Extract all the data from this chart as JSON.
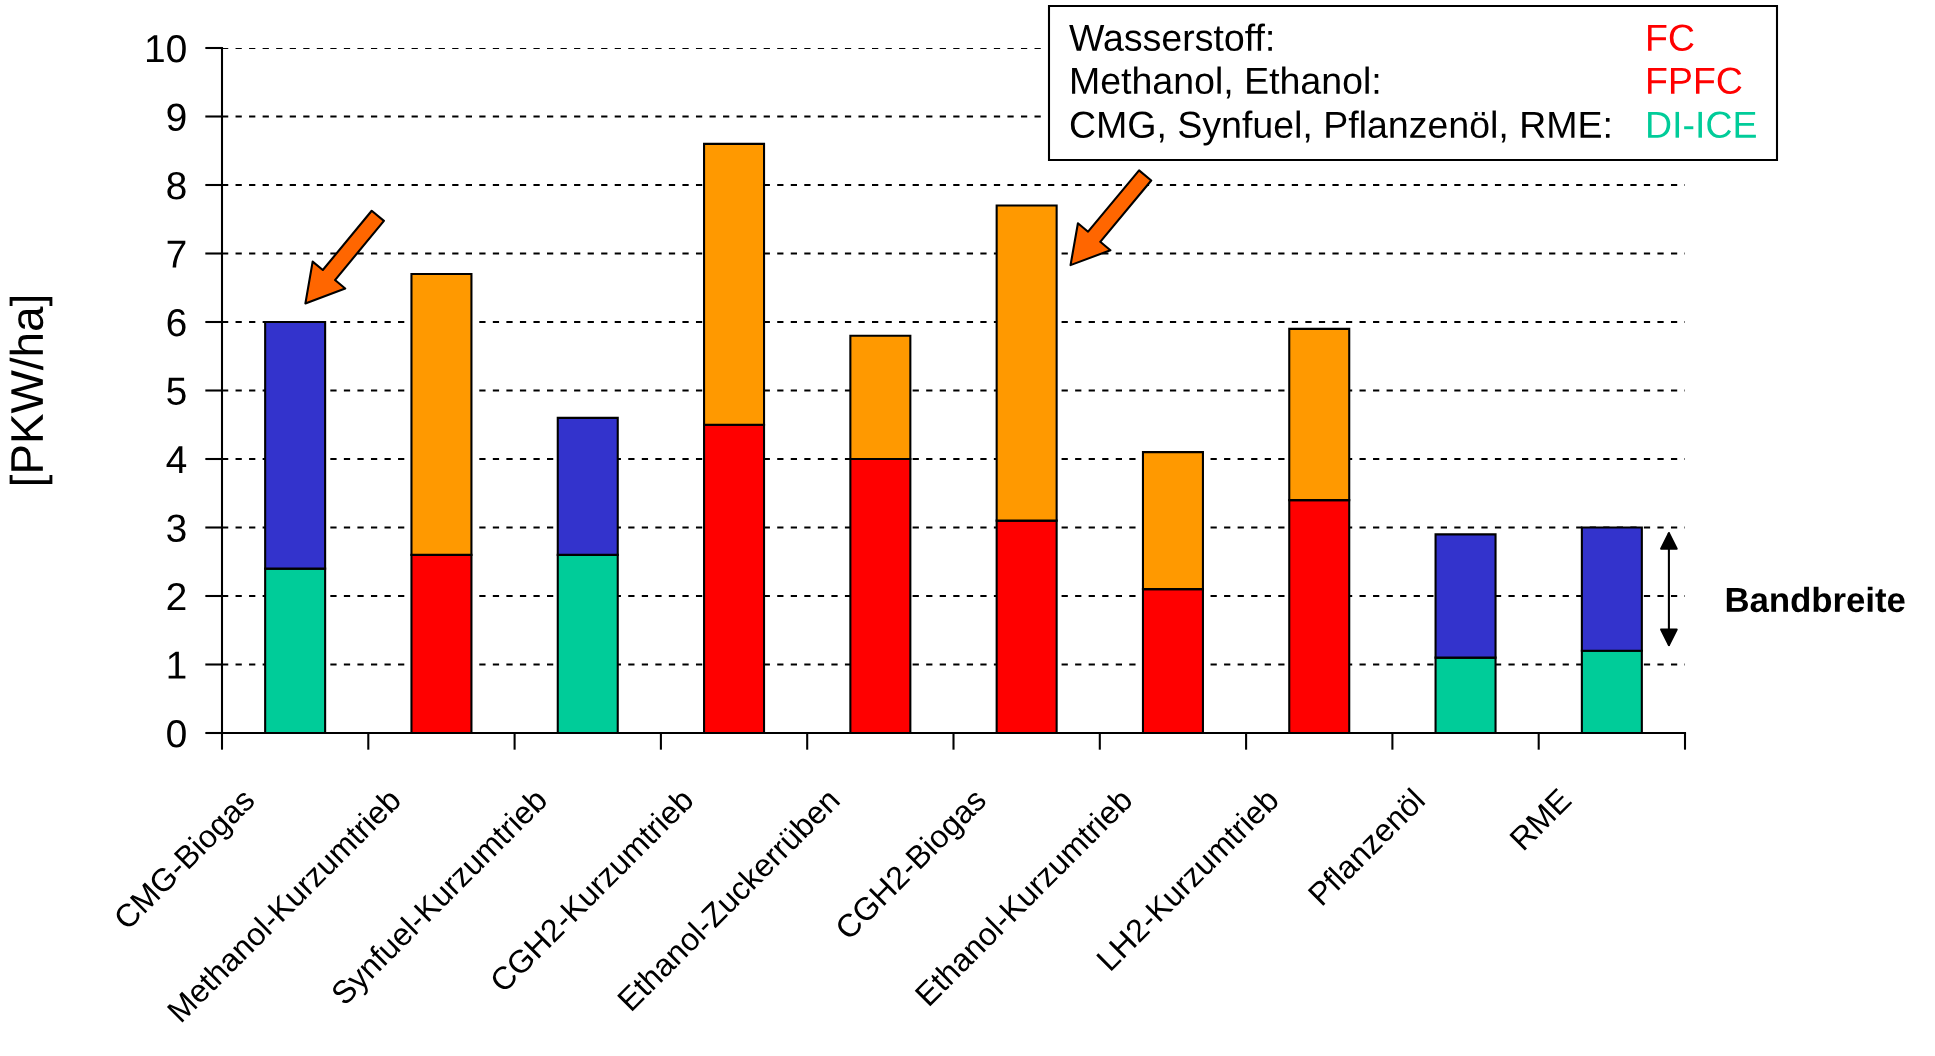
{
  "chart_data": {
    "type": "bar",
    "stacked": true,
    "ylabel": "[PKW/ha]",
    "categories": [
      "CMG-Biogas",
      "Methanol-Kurzumtrieb",
      "Synfuel-Kurzumtrieb",
      "CGH2-Kurzumtrieb",
      "Ethanol-Zuckerrüben",
      "CGH2-Biogas",
      "Ethanol-Kurzumtrieb",
      "LH2-Kurzumtrieb",
      "Pflanzenöl",
      "RME"
    ],
    "series": [
      {
        "colors": [
          "#00cc99",
          "#ff0000",
          "#00cc99",
          "#ff0000",
          "#ff0000",
          "#ff0000",
          "#ff0000",
          "#ff0000",
          "#00cc99",
          "#00cc99"
        ],
        "values": [
          2.4,
          2.6,
          2.6,
          4.5,
          4.0,
          3.1,
          2.1,
          3.4,
          1.1,
          1.2
        ]
      },
      {
        "colors": [
          "#3333cc",
          "#ff9900",
          "#3333cc",
          "#ff9900",
          "#ff9900",
          "#ff9900",
          "#ff9900",
          "#ff9900",
          "#3333cc",
          "#3333cc"
        ],
        "values": [
          3.6,
          4.1,
          2.0,
          4.1,
          1.8,
          4.6,
          2.0,
          2.5,
          1.8,
          1.8
        ]
      }
    ],
    "ylim": [
      0,
      10
    ],
    "yticks": [
      0,
      1,
      2,
      3,
      4,
      5,
      6,
      7,
      8,
      9,
      10
    ],
    "grid": "y",
    "annotations": [
      "Wasserstoff:",
      "FC",
      "Methanol, Ethanol:",
      "FPFC",
      "CMG, Synfuel, Pflanzenöl, RME:",
      "DI-ICE",
      "Bandbreite"
    ]
  }
}
